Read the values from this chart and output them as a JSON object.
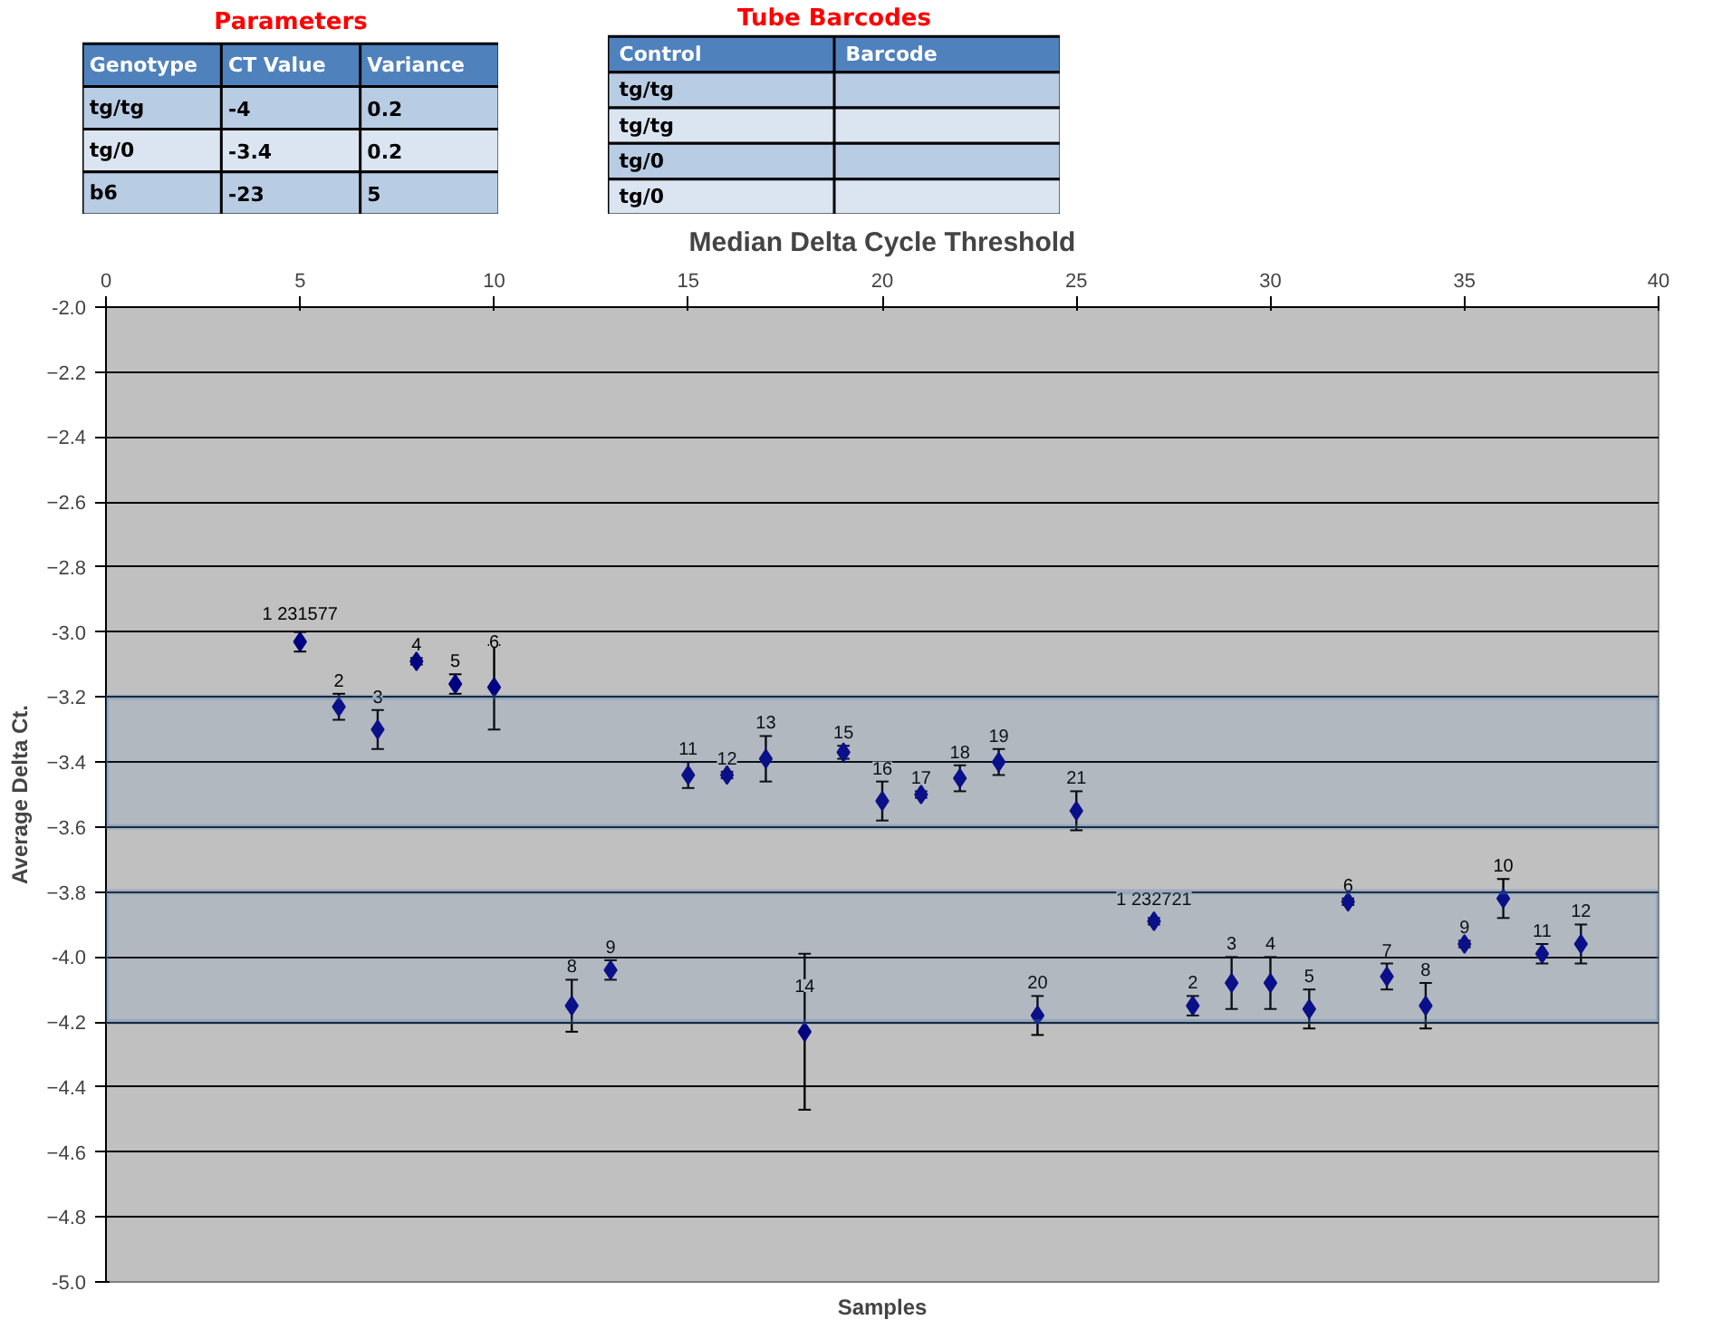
{
  "chart_data": [
    {
      "type": "other",
      "title": "Parameters",
      "categories": [
        "Genotype",
        "CT Value",
        "Variance"
      ],
      "cells": [
        [
          "tg/tg",
          "-4",
          "0.2"
        ],
        [
          "tg/0",
          "-3.4",
          "0.2"
        ],
        [
          "b6",
          "-23",
          "5"
        ]
      ]
    },
    {
      "type": "other",
      "title": "Tube Barcodes",
      "categories": [
        "Control",
        "Barcode"
      ],
      "cells": [
        [
          "tg/tg",
          null
        ],
        [
          "tg/tg",
          null
        ],
        [
          "tg/0",
          null
        ],
        [
          "tg/0",
          null
        ]
      ]
    },
    {
      "type": "scatter",
      "title": "Median Delta Cycle Threshold",
      "xlabel": "Samples",
      "ylabel": "Average Delta Ct.",
      "x": [
        5,
        6,
        7,
        8,
        9,
        10,
        12,
        13,
        15,
        16,
        17,
        18,
        19,
        20,
        21,
        22,
        23,
        24,
        25,
        27,
        28,
        29,
        30,
        31,
        32,
        33,
        34,
        35,
        36,
        37,
        38
      ],
      "series": [
        {
          "color": "#000080",
          "values": [
            -3.03,
            -3.23,
            -3.3,
            -3.09,
            -3.16,
            -3.17,
            -4.15,
            -4.04,
            -3.44,
            -3.44,
            -3.39,
            -4.23,
            -3.37,
            -3.52,
            -3.5,
            -3.45,
            -3.4,
            -4.18,
            -3.55,
            -3.89,
            -4.15,
            -4.08,
            -4.08,
            -4.16,
            -3.83,
            -4.06,
            -4.15,
            -3.96,
            -3.82,
            -3.99,
            -3.96
          ],
          "errors": [
            0.03,
            0.04,
            0.06,
            0.01,
            0.03,
            0.13,
            0.08,
            0.03,
            0.04,
            0.01,
            0.07,
            0.24,
            0.02,
            0.06,
            0.01,
            0.04,
            0.04,
            0.06,
            0.06,
            0.01,
            0.03,
            0.08,
            0.08,
            0.06,
            0.01,
            0.04,
            0.07,
            0.01,
            0.06,
            0.03,
            0.06
          ]
        }
      ],
      "annotations": [
        {
          "text": "1 231577",
          "x": 5,
          "y": -3.03
        },
        {
          "text": "2",
          "x": 6,
          "y": -3.23
        },
        {
          "text": "3",
          "x": 7,
          "y": -3.3
        },
        {
          "text": "4",
          "x": 8,
          "y": -3.09
        },
        {
          "text": "5",
          "x": 9,
          "y": -3.16
        },
        {
          "text": "6",
          "x": 10,
          "y": -3.17
        },
        {
          "text": "8",
          "x": 12,
          "y": -4.15
        },
        {
          "text": "9",
          "x": 13,
          "y": -4.04
        },
        {
          "text": "11",
          "x": 15,
          "y": -3.44
        },
        {
          "text": "12",
          "x": 16,
          "y": -3.44
        },
        {
          "text": "13",
          "x": 17,
          "y": -3.39
        },
        {
          "text": "14",
          "x": 18,
          "y": -4.23
        },
        {
          "text": "15",
          "x": 19,
          "y": -3.37
        },
        {
          "text": "16",
          "x": 20,
          "y": -3.52
        },
        {
          "text": "17",
          "x": 21,
          "y": -3.5
        },
        {
          "text": "18",
          "x": 22,
          "y": -3.45
        },
        {
          "text": "19",
          "x": 23,
          "y": -3.4
        },
        {
          "text": "20",
          "x": 24,
          "y": -4.18
        },
        {
          "text": "21",
          "x": 25,
          "y": -3.55
        },
        {
          "text": "1 232721",
          "x": 27,
          "y": -3.89
        },
        {
          "text": "2",
          "x": 28,
          "y": -4.15
        },
        {
          "text": "3",
          "x": 29,
          "y": -4.08
        },
        {
          "text": "4",
          "x": 30,
          "y": -4.08
        },
        {
          "text": "5",
          "x": 31,
          "y": -4.16
        },
        {
          "text": "6",
          "x": 32,
          "y": -3.83
        },
        {
          "text": "7",
          "x": 33,
          "y": -4.06
        },
        {
          "text": "8",
          "x": 34,
          "y": -4.15
        },
        {
          "text": "9",
          "x": 35,
          "y": -3.96
        },
        {
          "text": "10",
          "x": 36,
          "y": -3.82
        },
        {
          "text": "11",
          "x": 37,
          "y": -3.99
        },
        {
          "text": "12",
          "x": 38,
          "y": -3.96
        }
      ],
      "xlim": [
        0,
        40
      ],
      "xticks": [
        0,
        5,
        10,
        15,
        20,
        25,
        30,
        35,
        40
      ],
      "ylim": [
        -5.0,
        -2.0
      ],
      "yticks": [
        {
          "value": -2.0,
          "label": "-2.0"
        },
        -2.2,
        -2.4,
        -2.6,
        -2.8,
        {
          "value": -3.0,
          "label": "-3.0"
        },
        -3.2,
        -3.4,
        -3.6,
        -3.8,
        {
          "value": -4.0,
          "label": "-4.0"
        },
        -4.2,
        -4.4,
        -4.6,
        -4.8,
        {
          "value": -5.0,
          "label": "-5.0"
        }
      ],
      "bands": [
        {
          "axis": "y",
          "from": -3.2,
          "to": -3.6,
          "color": "#4f81bd"
        },
        {
          "axis": "y",
          "from": -3.8,
          "to": -4.2,
          "color": "#4f81bd"
        }
      ],
      "grid": "y",
      "marker": "diamond",
      "legend": false
    }
  ]
}
